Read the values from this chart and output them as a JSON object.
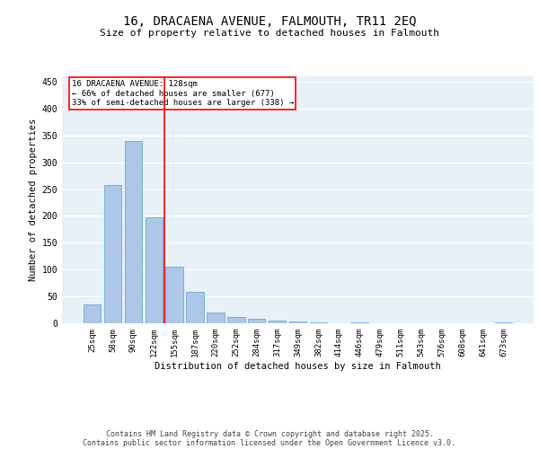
{
  "title": "16, DRACAENA AVENUE, FALMOUTH, TR11 2EQ",
  "subtitle": "Size of property relative to detached houses in Falmouth",
  "xlabel": "Distribution of detached houses by size in Falmouth",
  "ylabel": "Number of detached properties",
  "categories": [
    "25sqm",
    "58sqm",
    "90sqm",
    "122sqm",
    "155sqm",
    "187sqm",
    "220sqm",
    "252sqm",
    "284sqm",
    "317sqm",
    "349sqm",
    "382sqm",
    "414sqm",
    "446sqm",
    "479sqm",
    "511sqm",
    "543sqm",
    "576sqm",
    "608sqm",
    "641sqm",
    "673sqm"
  ],
  "values": [
    35,
    257,
    340,
    198,
    105,
    58,
    20,
    11,
    8,
    5,
    3,
    1,
    0,
    1,
    0,
    0,
    0,
    0,
    0,
    0,
    1
  ],
  "bar_color": "#aec6e8",
  "bar_edge_color": "#5a9fd4",
  "annotation_line1": "16 DRACAENA AVENUE: 128sqm",
  "annotation_line2": "← 66% of detached houses are smaller (677)",
  "annotation_line3": "33% of semi-detached houses are larger (338) →",
  "annotation_box_color": "white",
  "annotation_box_edge_color": "red",
  "ylim": [
    0,
    460
  ],
  "yticks": [
    0,
    50,
    100,
    150,
    200,
    250,
    300,
    350,
    400,
    450
  ],
  "background_color": "#e8f0f8",
  "grid_color": "white",
  "footer_line1": "Contains HM Land Registry data © Crown copyright and database right 2025.",
  "footer_line2": "Contains public sector information licensed under the Open Government Licence v3.0."
}
